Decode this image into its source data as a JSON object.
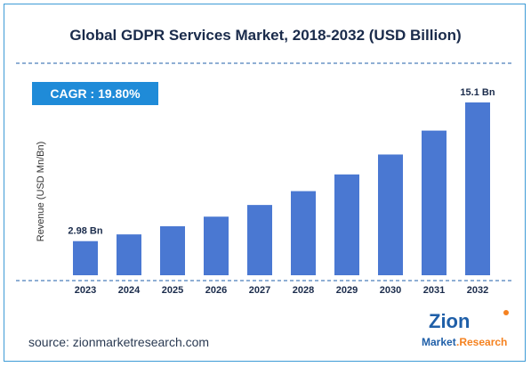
{
  "header": {
    "title": "Global GDPR Services Market, 2018-2032 (USD Billion)"
  },
  "badge": {
    "cagr_label": "CAGR :  19.80%"
  },
  "footer": {
    "source": "source: zionmarketresearch.com"
  },
  "logo": {
    "word1": "Zion",
    "word2": "Market",
    "word3": ".Research",
    "colors": [
      "#1f5fa8",
      "#f58220"
    ]
  },
  "colors": {
    "bar": "#4a78d2",
    "frame": "#3d9bd6",
    "badge": "#1f8bd8",
    "divider": "#1f5fa8"
  },
  "chart_data": {
    "type": "bar",
    "title": "Global GDPR Services Market, 2018-2032 (USD Billion)",
    "ylabel": "Revenue (USD Mn/Bn)",
    "xlabel": "",
    "categories": [
      "2023",
      "2024",
      "2025",
      "2026",
      "2027",
      "2028",
      "2029",
      "2030",
      "2031",
      "2032"
    ],
    "values": [
      2.98,
      3.57,
      4.28,
      5.12,
      6.14,
      7.35,
      8.81,
      10.55,
      12.64,
      15.1
    ],
    "data_labels": {
      "first": "2.98 Bn",
      "last": "15.1 Bn"
    },
    "ylim": [
      0,
      15.1
    ],
    "grid": false,
    "legend": "none"
  }
}
